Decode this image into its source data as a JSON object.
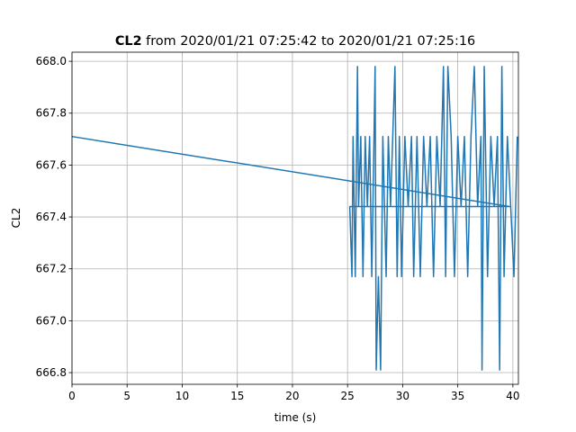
{
  "chart_data": {
    "type": "line",
    "title_bold": "CL2",
    "title": "from 2020/01/21 07:25:42 to 2020/01/21 07:25:16",
    "x_label": "time (s)",
    "y_label": "CL2",
    "xlim": [
      0,
      40.5
    ],
    "ylim": [
      666.755,
      668.035
    ],
    "xticks": [
      0,
      5,
      10,
      15,
      20,
      25,
      30,
      35,
      40
    ],
    "yticks": [
      666.8,
      {
        "value": 667.0,
        "label": "667.0"
      },
      667.2,
      667.4,
      667.6,
      667.8,
      {
        "value": 668.0,
        "label": "668.0"
      }
    ],
    "grid": true,
    "series": [
      {
        "name": "CL2",
        "color": "#1f77b4",
        "x": [
          0,
          39.7,
          25.2,
          25.4,
          25.5,
          25.7,
          25.9,
          26.0,
          26.2,
          26.4,
          26.6,
          26.8,
          27.0,
          27.2,
          27.5,
          27.6,
          27.8,
          28.0,
          28.2,
          28.5,
          28.7,
          28.9,
          29.1,
          29.3,
          29.5,
          29.7,
          29.9,
          30.2,
          30.5,
          30.8,
          31.0,
          31.3,
          31.6,
          31.9,
          32.2,
          32.5,
          32.8,
          33.1,
          33.4,
          33.7,
          33.9,
          34.1,
          34.4,
          34.7,
          35.0,
          35.3,
          35.6,
          35.9,
          36.2,
          36.5,
          36.8,
          37.1,
          37.2,
          37.4,
          37.7,
          38.0,
          38.3,
          38.6,
          38.8,
          39.0,
          39.2,
          39.5,
          39.8,
          40.1,
          40.4
        ],
        "values": [
          667.71,
          667.44,
          667.44,
          667.17,
          667.71,
          667.17,
          667.98,
          667.44,
          667.71,
          667.17,
          667.71,
          667.44,
          667.71,
          667.17,
          667.98,
          666.81,
          667.17,
          666.81,
          667.71,
          667.17,
          667.71,
          667.44,
          667.71,
          667.98,
          667.17,
          667.71,
          667.17,
          667.71,
          667.44,
          667.71,
          667.17,
          667.71,
          667.17,
          667.71,
          667.44,
          667.71,
          667.17,
          667.71,
          667.44,
          667.98,
          667.17,
          667.98,
          667.71,
          667.17,
          667.71,
          667.44,
          667.71,
          667.17,
          667.71,
          667.98,
          667.44,
          667.71,
          666.81,
          667.98,
          667.17,
          667.71,
          667.44,
          667.71,
          666.81,
          667.98,
          667.17,
          667.71,
          667.44,
          667.17,
          667.71
        ]
      }
    ]
  }
}
